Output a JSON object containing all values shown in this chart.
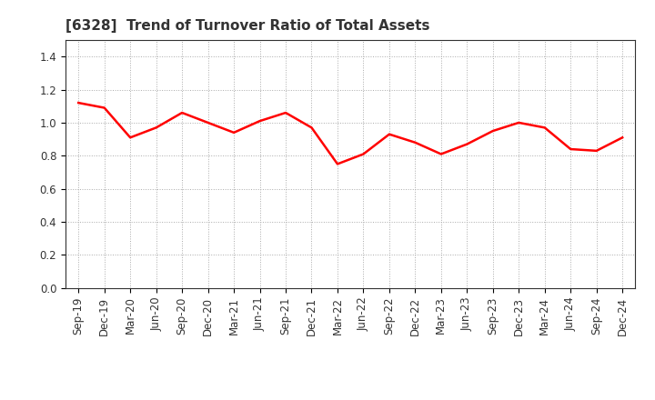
{
  "title": "[6328]  Trend of Turnover Ratio of Total Assets",
  "x_labels": [
    "Sep-19",
    "Dec-19",
    "Mar-20",
    "Jun-20",
    "Sep-20",
    "Dec-20",
    "Mar-21",
    "Jun-21",
    "Sep-21",
    "Dec-21",
    "Mar-22",
    "Jun-22",
    "Sep-22",
    "Dec-22",
    "Mar-23",
    "Jun-23",
    "Sep-23",
    "Dec-23",
    "Mar-24",
    "Jun-24",
    "Sep-24",
    "Dec-24"
  ],
  "y_values": [
    1.12,
    1.09,
    0.91,
    0.97,
    1.06,
    1.0,
    0.94,
    1.01,
    1.06,
    0.97,
    0.75,
    0.81,
    0.93,
    0.88,
    0.81,
    0.87,
    0.95,
    1.0,
    0.97,
    0.84,
    0.83,
    0.91
  ],
  "line_color": "#ff0000",
  "line_width": 1.8,
  "background_color": "#ffffff",
  "plot_bg_color": "#ffffff",
  "ylim": [
    0.0,
    1.5
  ],
  "yticks": [
    0.0,
    0.2,
    0.4,
    0.6,
    0.8,
    1.0,
    1.2,
    1.4
  ],
  "grid_color": "#aaaaaa",
  "title_fontsize": 11,
  "tick_fontsize": 8.5
}
